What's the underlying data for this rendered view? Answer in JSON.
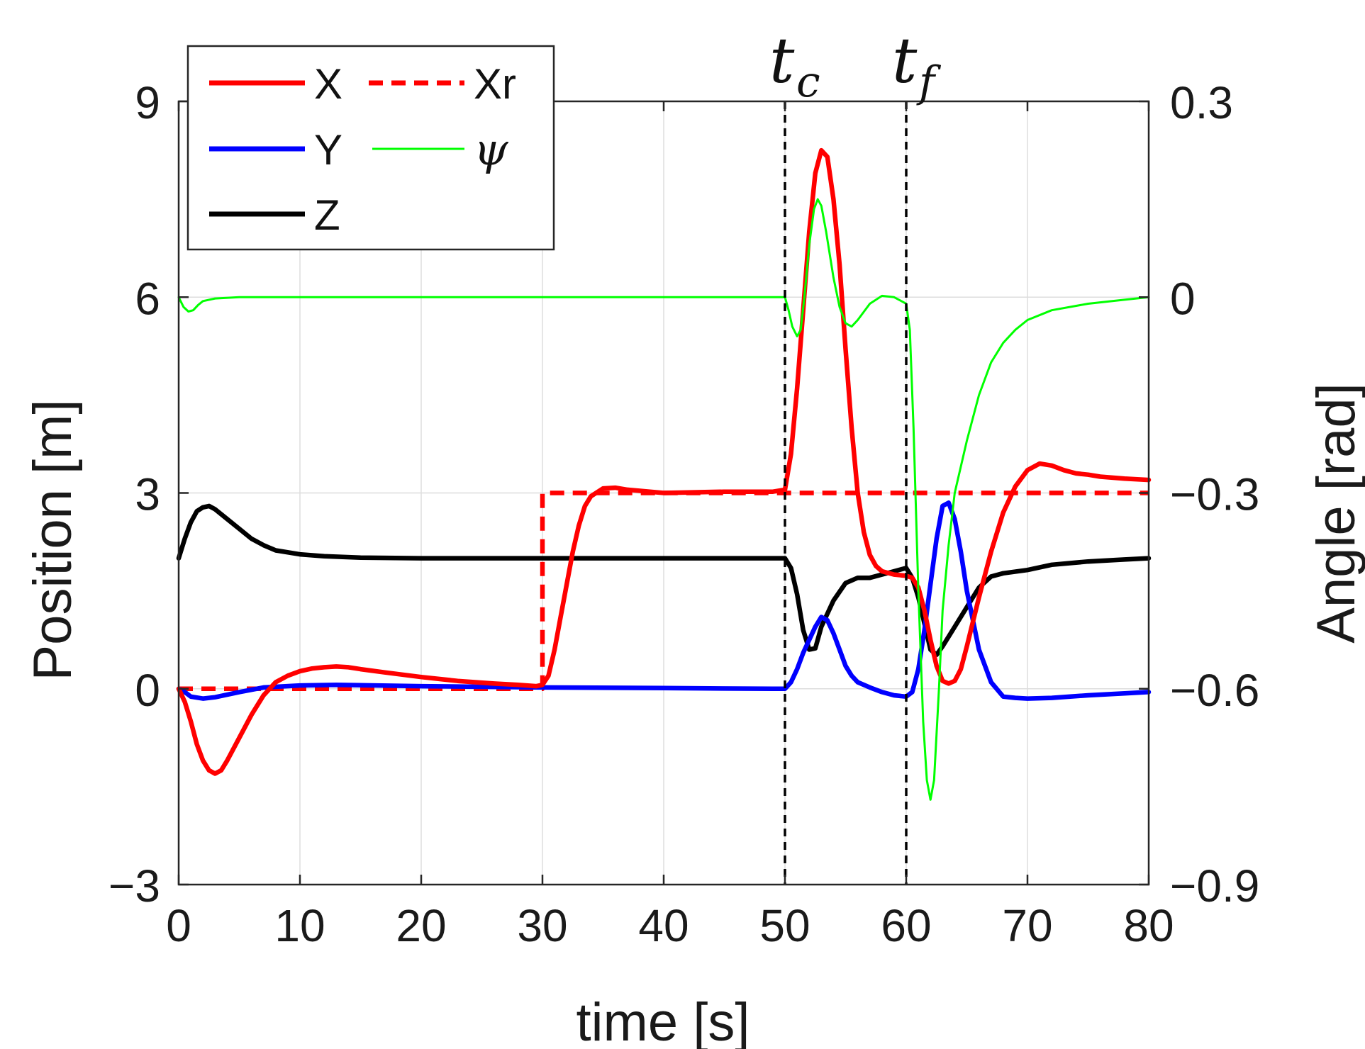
{
  "chart_data": {
    "type": "line",
    "xlabel": "time [s]",
    "ylabel_left": "Position [m]",
    "ylabel_right": "Angle [rad]",
    "xlim": [
      0,
      80
    ],
    "ylim_left": [
      -3,
      9
    ],
    "ylim_right": [
      -0.9,
      0.3
    ],
    "xticks": [
      "0",
      "10",
      "20",
      "30",
      "40",
      "50",
      "60",
      "70",
      "80"
    ],
    "yticks_left": [
      "−3",
      "0",
      "3",
      "6",
      "9"
    ],
    "yticks_right": [
      "−0.9",
      "−0.6",
      "−0.3",
      "0",
      "0.3"
    ],
    "grid": true,
    "legend_placement": "top-left",
    "legend_labels": [
      "X",
      "Xr",
      "Y",
      "ψ",
      "Z"
    ],
    "markers": [
      {
        "base": "t",
        "sub": "c",
        "x": 50
      },
      {
        "base": "t",
        "sub": "f",
        "x": 60
      }
    ],
    "colors": {
      "X": "#ff0000",
      "Xr": "#ff0000",
      "Y": "#0000ff",
      "Z": "#000000",
      "psi": "#00ff00",
      "marker": "#000000",
      "grid": "#dddddd"
    },
    "series": [
      {
        "name": "X",
        "axis": "left",
        "style": "solid",
        "points": [
          [
            0,
            0
          ],
          [
            0.5,
            -0.2
          ],
          [
            1,
            -0.5
          ],
          [
            1.5,
            -0.85
          ],
          [
            2,
            -1.1
          ],
          [
            2.5,
            -1.25
          ],
          [
            3,
            -1.3
          ],
          [
            3.5,
            -1.25
          ],
          [
            4,
            -1.1
          ],
          [
            5,
            -0.75
          ],
          [
            6,
            -0.4
          ],
          [
            7,
            -0.1
          ],
          [
            8,
            0.1
          ],
          [
            9,
            0.2
          ],
          [
            10,
            0.27
          ],
          [
            11,
            0.31
          ],
          [
            12,
            0.33
          ],
          [
            13,
            0.34
          ],
          [
            14,
            0.33
          ],
          [
            15,
            0.3
          ],
          [
            17,
            0.25
          ],
          [
            20,
            0.18
          ],
          [
            23,
            0.12
          ],
          [
            26,
            0.08
          ],
          [
            28,
            0.06
          ],
          [
            29.5,
            0.04
          ],
          [
            30,
            0.06
          ],
          [
            30.5,
            0.2
          ],
          [
            31,
            0.6
          ],
          [
            31.5,
            1.1
          ],
          [
            32,
            1.6
          ],
          [
            32.5,
            2.1
          ],
          [
            33,
            2.5
          ],
          [
            33.5,
            2.8
          ],
          [
            34,
            2.95
          ],
          [
            35,
            3.07
          ],
          [
            36,
            3.08
          ],
          [
            37,
            3.05
          ],
          [
            40,
            3.0
          ],
          [
            45,
            3.02
          ],
          [
            49,
            3.02
          ],
          [
            50,
            3.05
          ],
          [
            50.5,
            3.6
          ],
          [
            51,
            4.6
          ],
          [
            51.5,
            5.8
          ],
          [
            52,
            7.0
          ],
          [
            52.5,
            7.9
          ],
          [
            53,
            8.25
          ],
          [
            53.5,
            8.15
          ],
          [
            54,
            7.5
          ],
          [
            54.5,
            6.5
          ],
          [
            55,
            5.2
          ],
          [
            55.5,
            4.0
          ],
          [
            56,
            3.0
          ],
          [
            56.5,
            2.4
          ],
          [
            57,
            2.05
          ],
          [
            57.5,
            1.88
          ],
          [
            58,
            1.8
          ],
          [
            59,
            1.75
          ],
          [
            60,
            1.73
          ],
          [
            60.5,
            1.7
          ],
          [
            61,
            1.55
          ],
          [
            61.5,
            1.2
          ],
          [
            62,
            0.75
          ],
          [
            62.5,
            0.35
          ],
          [
            63,
            0.12
          ],
          [
            63.5,
            0.08
          ],
          [
            64,
            0.12
          ],
          [
            64.5,
            0.3
          ],
          [
            65,
            0.65
          ],
          [
            66,
            1.4
          ],
          [
            67,
            2.1
          ],
          [
            68,
            2.7
          ],
          [
            69,
            3.1
          ],
          [
            70,
            3.35
          ],
          [
            71,
            3.45
          ],
          [
            72,
            3.42
          ],
          [
            73,
            3.35
          ],
          [
            74,
            3.3
          ],
          [
            75,
            3.28
          ],
          [
            76,
            3.25
          ],
          [
            78,
            3.22
          ],
          [
            80,
            3.2
          ]
        ]
      },
      {
        "name": "Xr",
        "axis": "left",
        "style": "dashed",
        "points": [
          [
            0,
            0
          ],
          [
            30,
            0
          ],
          [
            30,
            3
          ],
          [
            80,
            3
          ]
        ]
      },
      {
        "name": "Y",
        "axis": "left",
        "style": "solid",
        "points": [
          [
            0,
            0
          ],
          [
            0.5,
            -0.05
          ],
          [
            1,
            -0.12
          ],
          [
            2,
            -0.15
          ],
          [
            3,
            -0.13
          ],
          [
            5,
            -0.05
          ],
          [
            7,
            0.02
          ],
          [
            10,
            0.05
          ],
          [
            13,
            0.06
          ],
          [
            20,
            0.04
          ],
          [
            30,
            0.02
          ],
          [
            40,
            0.01
          ],
          [
            49,
            0.0
          ],
          [
            50,
            0.0
          ],
          [
            50.5,
            0.1
          ],
          [
            51,
            0.3
          ],
          [
            51.5,
            0.55
          ],
          [
            52,
            0.75
          ],
          [
            52.5,
            0.95
          ],
          [
            53,
            1.1
          ],
          [
            53.5,
            1.05
          ],
          [
            54,
            0.85
          ],
          [
            54.5,
            0.6
          ],
          [
            55,
            0.35
          ],
          [
            55.5,
            0.2
          ],
          [
            56,
            0.1
          ],
          [
            57,
            0.02
          ],
          [
            58,
            -0.05
          ],
          [
            59,
            -0.1
          ],
          [
            60,
            -0.12
          ],
          [
            60.5,
            -0.05
          ],
          [
            61,
            0.3
          ],
          [
            61.5,
            0.9
          ],
          [
            62,
            1.6
          ],
          [
            62.5,
            2.3
          ],
          [
            63,
            2.8
          ],
          [
            63.5,
            2.85
          ],
          [
            64,
            2.6
          ],
          [
            64.5,
            2.1
          ],
          [
            65,
            1.5
          ],
          [
            66,
            0.6
          ],
          [
            67,
            0.1
          ],
          [
            68,
            -0.12
          ],
          [
            69,
            -0.14
          ],
          [
            70,
            -0.15
          ],
          [
            72,
            -0.14
          ],
          [
            75,
            -0.1
          ],
          [
            78,
            -0.07
          ],
          [
            80,
            -0.05
          ]
        ]
      },
      {
        "name": "Z",
        "axis": "left",
        "style": "solid",
        "points": [
          [
            0,
            2.0
          ],
          [
            0.5,
            2.3
          ],
          [
            1,
            2.55
          ],
          [
            1.5,
            2.72
          ],
          [
            2,
            2.78
          ],
          [
            2.5,
            2.8
          ],
          [
            3,
            2.75
          ],
          [
            4,
            2.6
          ],
          [
            5,
            2.45
          ],
          [
            6,
            2.3
          ],
          [
            7,
            2.2
          ],
          [
            8,
            2.12
          ],
          [
            10,
            2.06
          ],
          [
            12,
            2.03
          ],
          [
            15,
            2.01
          ],
          [
            20,
            2.0
          ],
          [
            30,
            2.0
          ],
          [
            40,
            2.0
          ],
          [
            50,
            2.0
          ],
          [
            50.5,
            1.85
          ],
          [
            51,
            1.45
          ],
          [
            51.5,
            0.9
          ],
          [
            52,
            0.6
          ],
          [
            52.5,
            0.62
          ],
          [
            53,
            0.95
          ],
          [
            54,
            1.35
          ],
          [
            55,
            1.62
          ],
          [
            56,
            1.7
          ],
          [
            57,
            1.7
          ],
          [
            58,
            1.75
          ],
          [
            59,
            1.8
          ],
          [
            60,
            1.85
          ],
          [
            60.5,
            1.7
          ],
          [
            61,
            1.4
          ],
          [
            61.5,
            1.0
          ],
          [
            62,
            0.6
          ],
          [
            62.5,
            0.52
          ],
          [
            63,
            0.65
          ],
          [
            64,
            0.95
          ],
          [
            65,
            1.25
          ],
          [
            66,
            1.55
          ],
          [
            67,
            1.72
          ],
          [
            68,
            1.77
          ],
          [
            70,
            1.82
          ],
          [
            72,
            1.9
          ],
          [
            75,
            1.95
          ],
          [
            78,
            1.98
          ],
          [
            80,
            2.0
          ]
        ]
      },
      {
        "name": "ψ",
        "axis": "right",
        "style": "thin",
        "points": [
          [
            0,
            0
          ],
          [
            0.4,
            -0.015
          ],
          [
            0.8,
            -0.022
          ],
          [
            1.2,
            -0.02
          ],
          [
            1.6,
            -0.012
          ],
          [
            2,
            -0.006
          ],
          [
            3,
            -0.002
          ],
          [
            5,
            0.0
          ],
          [
            10,
            0.0
          ],
          [
            20,
            0.0
          ],
          [
            30,
            0.0
          ],
          [
            40,
            0.0
          ],
          [
            50,
            0.0
          ],
          [
            50.3,
            -0.02
          ],
          [
            50.6,
            -0.045
          ],
          [
            51,
            -0.06
          ],
          [
            51.3,
            -0.05
          ],
          [
            51.6,
            0.0
          ],
          [
            52,
            0.08
          ],
          [
            52.4,
            0.135
          ],
          [
            52.7,
            0.15
          ],
          [
            53,
            0.14
          ],
          [
            53.4,
            0.1
          ],
          [
            54,
            0.03
          ],
          [
            54.5,
            -0.015
          ],
          [
            55,
            -0.04
          ],
          [
            55.5,
            -0.045
          ],
          [
            56,
            -0.035
          ],
          [
            57,
            -0.01
          ],
          [
            58,
            0.002
          ],
          [
            59,
            0.0
          ],
          [
            60,
            -0.01
          ],
          [
            60.3,
            -0.05
          ],
          [
            60.6,
            -0.2
          ],
          [
            61,
            -0.45
          ],
          [
            61.4,
            -0.65
          ],
          [
            61.7,
            -0.74
          ],
          [
            62,
            -0.77
          ],
          [
            62.3,
            -0.74
          ],
          [
            62.7,
            -0.6
          ],
          [
            63,
            -0.48
          ],
          [
            63.5,
            -0.38
          ],
          [
            64,
            -0.3
          ],
          [
            65,
            -0.22
          ],
          [
            66,
            -0.15
          ],
          [
            67,
            -0.1
          ],
          [
            68,
            -0.07
          ],
          [
            69,
            -0.05
          ],
          [
            70,
            -0.035
          ],
          [
            72,
            -0.02
          ],
          [
            75,
            -0.01
          ],
          [
            78,
            -0.004
          ],
          [
            80,
            0.0
          ]
        ]
      }
    ]
  }
}
